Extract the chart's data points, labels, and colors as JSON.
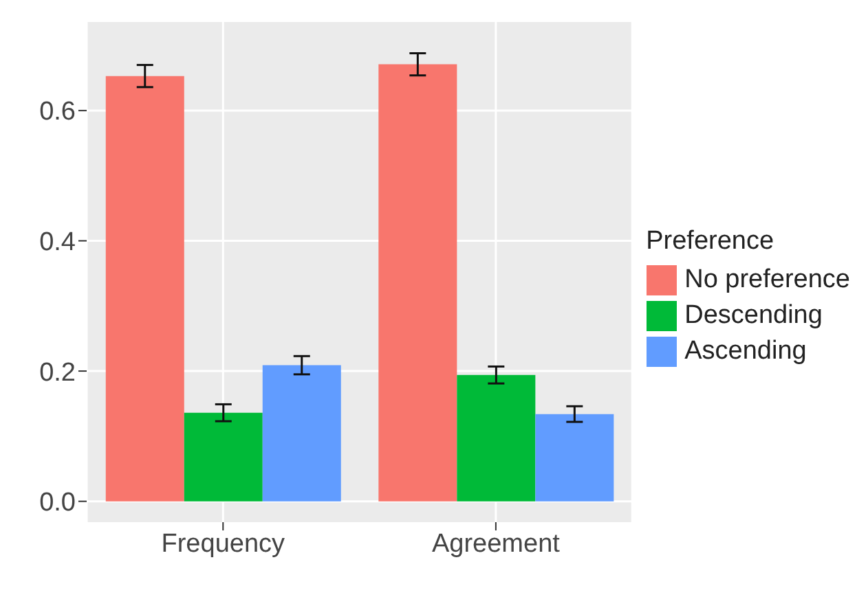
{
  "chart_data": {
    "type": "bar",
    "categories": [
      "Frequency",
      "Agreement"
    ],
    "series": [
      {
        "name": "No preference",
        "color": "#f8766d",
        "values": [
          0.653,
          0.671
        ],
        "errors": [
          0.017,
          0.017
        ]
      },
      {
        "name": "Descending",
        "color": "#00ba38",
        "values": [
          0.136,
          0.194
        ],
        "errors": [
          0.013,
          0.013
        ]
      },
      {
        "name": "Ascending",
        "color": "#619cff",
        "values": [
          0.209,
          0.134
        ],
        "errors": [
          0.014,
          0.012
        ]
      }
    ],
    "legend_title": "Preference",
    "legend": "right",
    "ylim": [
      -0.032,
      0.736
    ],
    "yticks": [
      {
        "value": 0,
        "label": "0.0"
      },
      0.2,
      0.4,
      0.6
    ],
    "grid": true
  }
}
